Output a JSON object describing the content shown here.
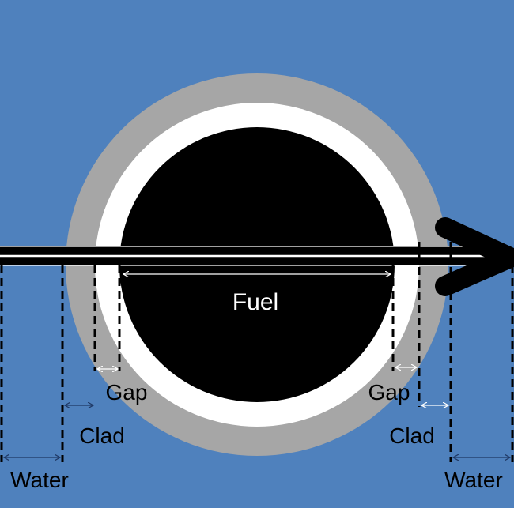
{
  "colors": {
    "water": "#4f81bd",
    "clad": "#a6a6a6",
    "gap": "#ffffff",
    "fuel": "#000000",
    "arrow_line": "#ffffff",
    "dim_line_dark": "#1f3864"
  },
  "labels": {
    "fuel": "Fuel",
    "gap_left": "Gap",
    "gap_right": "Gap",
    "clad_left": "Clad",
    "clad_right": "Clad",
    "water_left": "Water",
    "water_right": "Water"
  },
  "icons": {
    "ray_arrowhead": "arrowhead-icon"
  }
}
